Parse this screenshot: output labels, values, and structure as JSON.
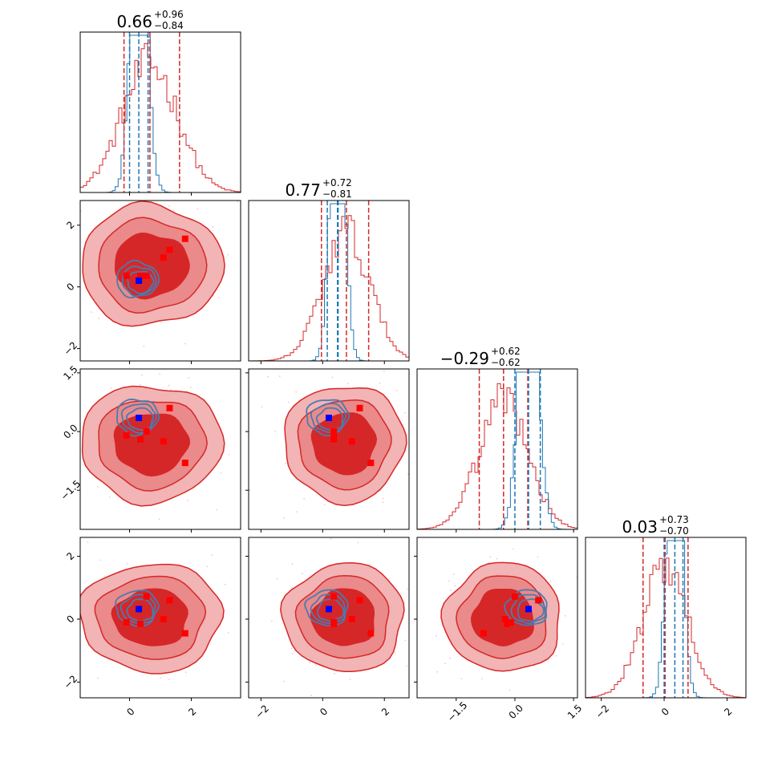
{
  "chart_data": {
    "type": "corner",
    "parameters": 4,
    "series": [
      {
        "color": "#d62728",
        "fill_light": "#f2b4b4",
        "fill_mid": "#ea8a8a",
        "fill_dark": "#d62728"
      },
      {
        "color": "#1f77b4"
      }
    ],
    "titles": [
      {
        "main": "0.66",
        "plus": "+0.96",
        "minus": "−0.84"
      },
      {
        "main": "0.77",
        "plus": "+0.72",
        "minus": "−0.81"
      },
      {
        "main": "−0.29",
        "plus": "+0.62",
        "minus": "−0.62"
      },
      {
        "main": "0.03",
        "plus": "+0.73",
        "minus": "−0.70"
      }
    ],
    "ranges": [
      [
        -1.6,
        3.6
      ],
      [
        -2.4,
        2.8
      ],
      [
        -2.5,
        1.6
      ],
      [
        -2.5,
        2.6
      ]
    ],
    "ticks": [
      {
        "values": [
          0,
          2
        ],
        "labels": [
          "0",
          "2"
        ]
      },
      {
        "values": [
          -2,
          0,
          2
        ],
        "labels": [
          "−2",
          "0",
          "2"
        ]
      },
      {
        "values": [
          -1.5,
          0.0,
          1.5
        ],
        "labels": [
          "−1.5",
          "0.0",
          "1.5"
        ]
      },
      {
        "values": [
          -2,
          0,
          2
        ],
        "labels": [
          "−2",
          "0",
          "2"
        ]
      }
    ],
    "red_marginal": {
      "centers": [
        0.66,
        0.77,
        -0.29,
        0.03
      ],
      "widths": [
        0.9,
        0.76,
        0.62,
        0.72
      ],
      "quantiles": [
        [
          -0.18,
          0.66,
          1.62
        ],
        [
          -0.04,
          0.77,
          1.49
        ],
        [
          -0.91,
          -0.29,
          0.33
        ],
        [
          -0.67,
          0.03,
          0.76
        ]
      ]
    },
    "blue_marginal": {
      "centers": [
        0.3,
        0.48,
        0.35,
        0.34
      ],
      "widths": [
        0.25,
        0.22,
        0.22,
        0.22
      ],
      "quantiles": [
        [
          0.0,
          0.6
        ],
        [
          0.15,
          0.5
        ],
        [
          0.0,
          0.65
        ],
        [
          0.0,
          0.6
        ]
      ]
    },
    "red_points": [
      [
        -0.1,
        0.36,
        -0.1,
        -0.1
      ],
      [
        0.55,
        0.36,
        0.0,
        0.72
      ],
      [
        1.1,
        0.95,
        -0.25,
        0.0
      ],
      [
        1.8,
        1.56,
        -0.8,
        -0.45
      ],
      [
        0.35,
        0.36,
        -0.2,
        -0.15
      ],
      [
        1.3,
        1.2,
        0.6,
        0.6
      ]
    ],
    "blue_points": [
      [
        0.3,
        0.2,
        0.35,
        0.32
      ]
    ],
    "red_center_2d": [
      0.7,
      0.7,
      -0.3,
      0.05
    ],
    "red_scale_2d": [
      1.0,
      0.85,
      0.65,
      0.75
    ]
  }
}
